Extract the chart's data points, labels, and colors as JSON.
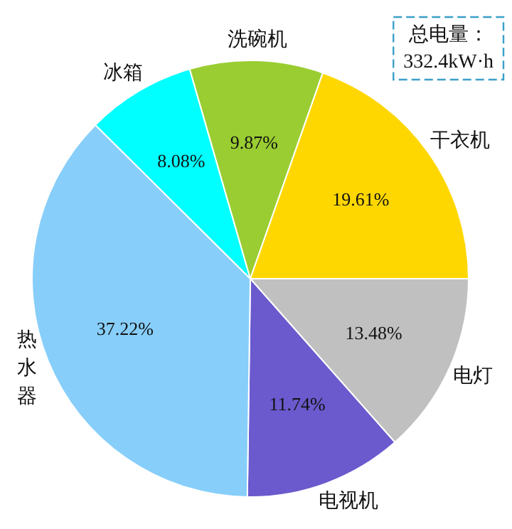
{
  "chart_data": {
    "type": "pie",
    "categories": [
      "电灯",
      "电视机",
      "热水器",
      "冰箱",
      "洗碗机",
      "干衣机"
    ],
    "values": [
      13.48,
      11.74,
      37.22,
      8.08,
      9.87,
      19.61
    ],
    "value_labels": [
      "13.48%",
      "11.74%",
      "37.22%",
      "8.08%",
      "9.87%",
      "19.61%"
    ],
    "colors": [
      "#c0c0c0",
      "#6a5acd",
      "#87cefa",
      "#00ffff",
      "#9acd32",
      "#ffd700"
    ],
    "annotations": [
      "总电量：\n332.4kW·h"
    ],
    "legend": false
  }
}
